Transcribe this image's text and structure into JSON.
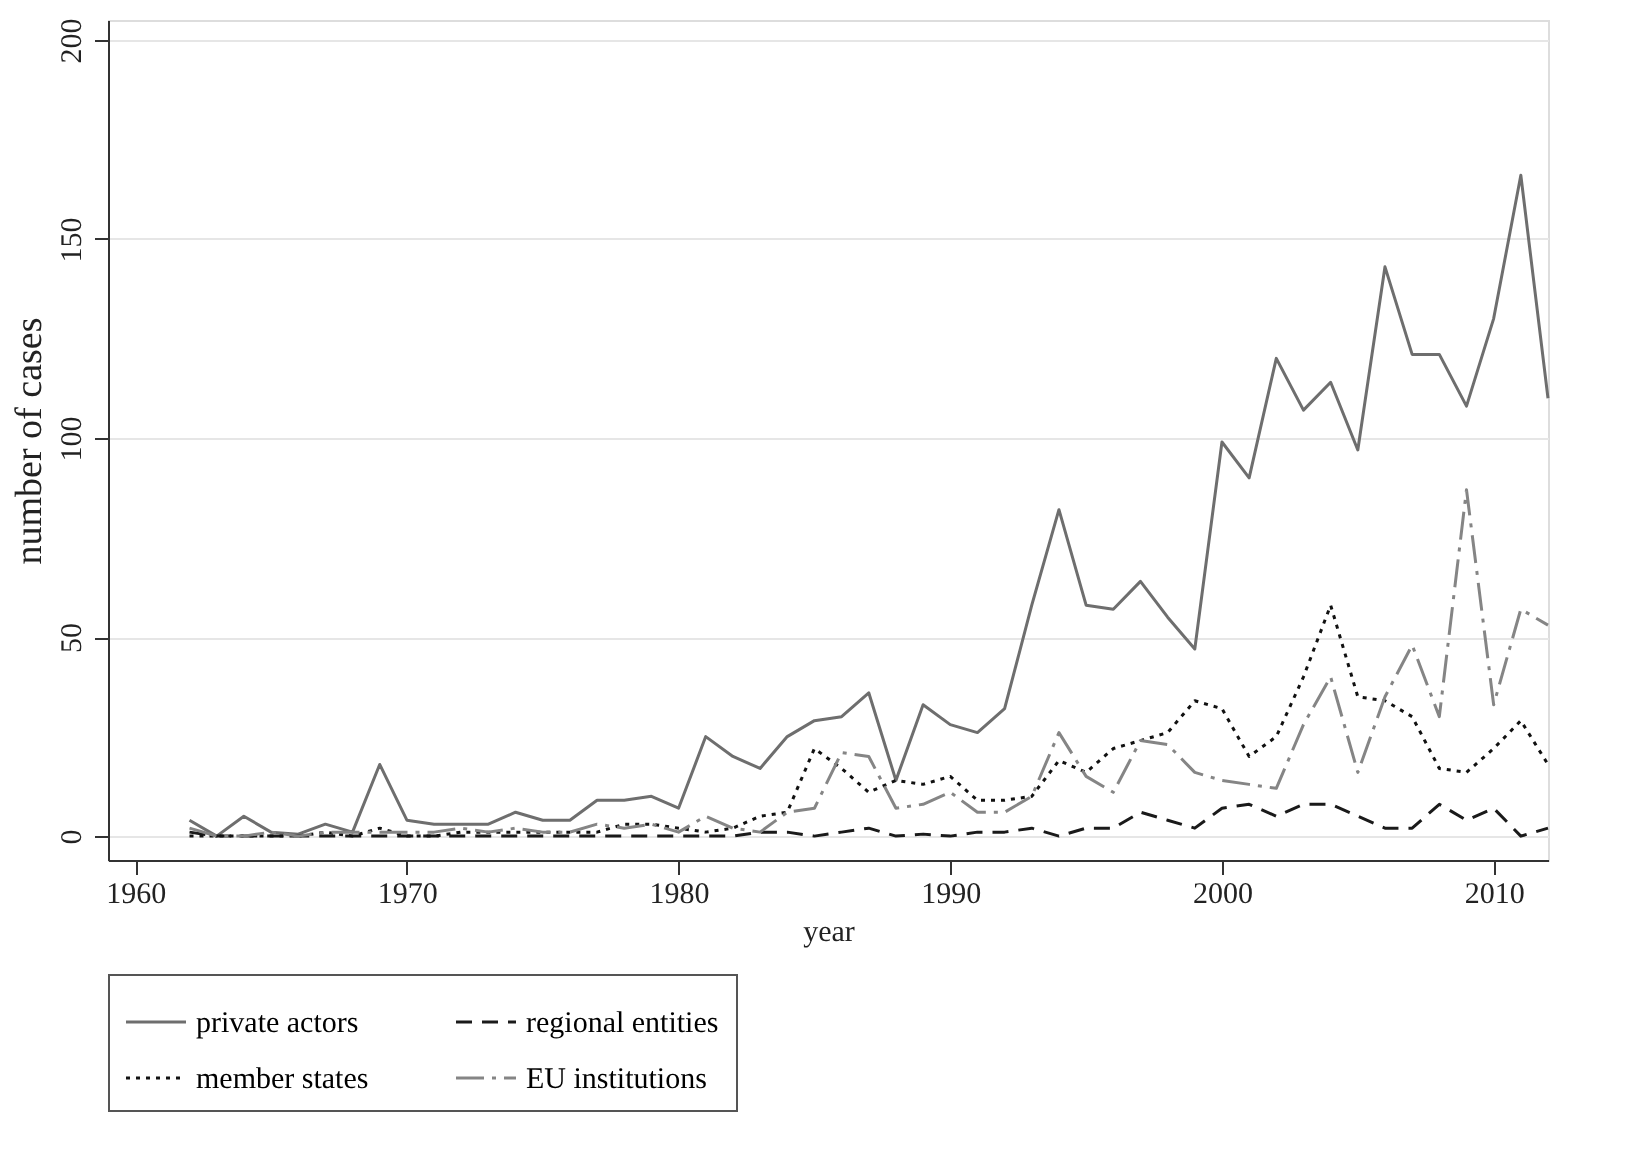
{
  "chart_data": {
    "type": "line",
    "xlabel": "year",
    "ylabel": "number of cases",
    "x": [
      1962,
      1963,
      1964,
      1965,
      1966,
      1967,
      1968,
      1969,
      1970,
      1971,
      1972,
      1973,
      1974,
      1975,
      1976,
      1977,
      1978,
      1979,
      1980,
      1981,
      1982,
      1983,
      1984,
      1985,
      1986,
      1987,
      1988,
      1989,
      1990,
      1991,
      1992,
      1993,
      1994,
      1995,
      1996,
      1997,
      1998,
      1999,
      2000,
      2001,
      2002,
      2003,
      2004,
      2005,
      2006,
      2007,
      2008,
      2009,
      2010,
      2011,
      2012
    ],
    "series": [
      {
        "name": "private actors",
        "color": "#6e6e6e",
        "line_style": "solid",
        "values": [
          4,
          0,
          5,
          1,
          0.5,
          3,
          1,
          18,
          4,
          3,
          3,
          3,
          6,
          4,
          4,
          9,
          9,
          10,
          7,
          25,
          20,
          17,
          25,
          29,
          30,
          36,
          14,
          33,
          28,
          26,
          32,
          58,
          82,
          58,
          57,
          64,
          55,
          47,
          99,
          90,
          120,
          107,
          114,
          97,
          143,
          121,
          121,
          108,
          130,
          166,
          110
        ]
      },
      {
        "name": "regional entities",
        "color": "#1a1a1a",
        "line_style": "dashed",
        "values": [
          1,
          0,
          0,
          0,
          0,
          0,
          0,
          0,
          0,
          0,
          0,
          0,
          0,
          0,
          0,
          0,
          0,
          0,
          0,
          0,
          0,
          1,
          1,
          0,
          1,
          2,
          0,
          0.5,
          0,
          1,
          1,
          2,
          0,
          2,
          2,
          6,
          4,
          2,
          7,
          8,
          5,
          8,
          8,
          5,
          2,
          2,
          8,
          4,
          7,
          0,
          2
        ]
      },
      {
        "name": "member states",
        "color": "#111111",
        "line_style": "dotted",
        "values": [
          0,
          0,
          0,
          0,
          0,
          1,
          0,
          2,
          0,
          0,
          1,
          1,
          1,
          1,
          1,
          1,
          3,
          3,
          2,
          1,
          2,
          5,
          6,
          22,
          17,
          11,
          14,
          13,
          15,
          9,
          9,
          10,
          19,
          16,
          22,
          24,
          26,
          34,
          32,
          20,
          25,
          40,
          58,
          35,
          34,
          30,
          17,
          16,
          22,
          29,
          18
        ]
      },
      {
        "name": "EU institutions",
        "color": "#858585",
        "line_style": "dashdot",
        "values": [
          2,
          0,
          0,
          1,
          0,
          1,
          1,
          1,
          1,
          1,
          2,
          1,
          2,
          1,
          1,
          3,
          2,
          3,
          1,
          5,
          2,
          1,
          6,
          7,
          21,
          20,
          7,
          8,
          11,
          6,
          6,
          10,
          26,
          15,
          11,
          24,
          23,
          16,
          14,
          13,
          12,
          28,
          40,
          16,
          35,
          48,
          30,
          87,
          33,
          57,
          53
        ]
      }
    ],
    "xlim": [
      1959,
      2012
    ],
    "xticks": [
      1960,
      1970,
      1980,
      1990,
      2000,
      2010
    ],
    "ylim": [
      -6,
      205
    ],
    "yticks": [
      0,
      50,
      100,
      150,
      200
    ],
    "grid": "y",
    "legend": "bottom",
    "marker": "none"
  }
}
